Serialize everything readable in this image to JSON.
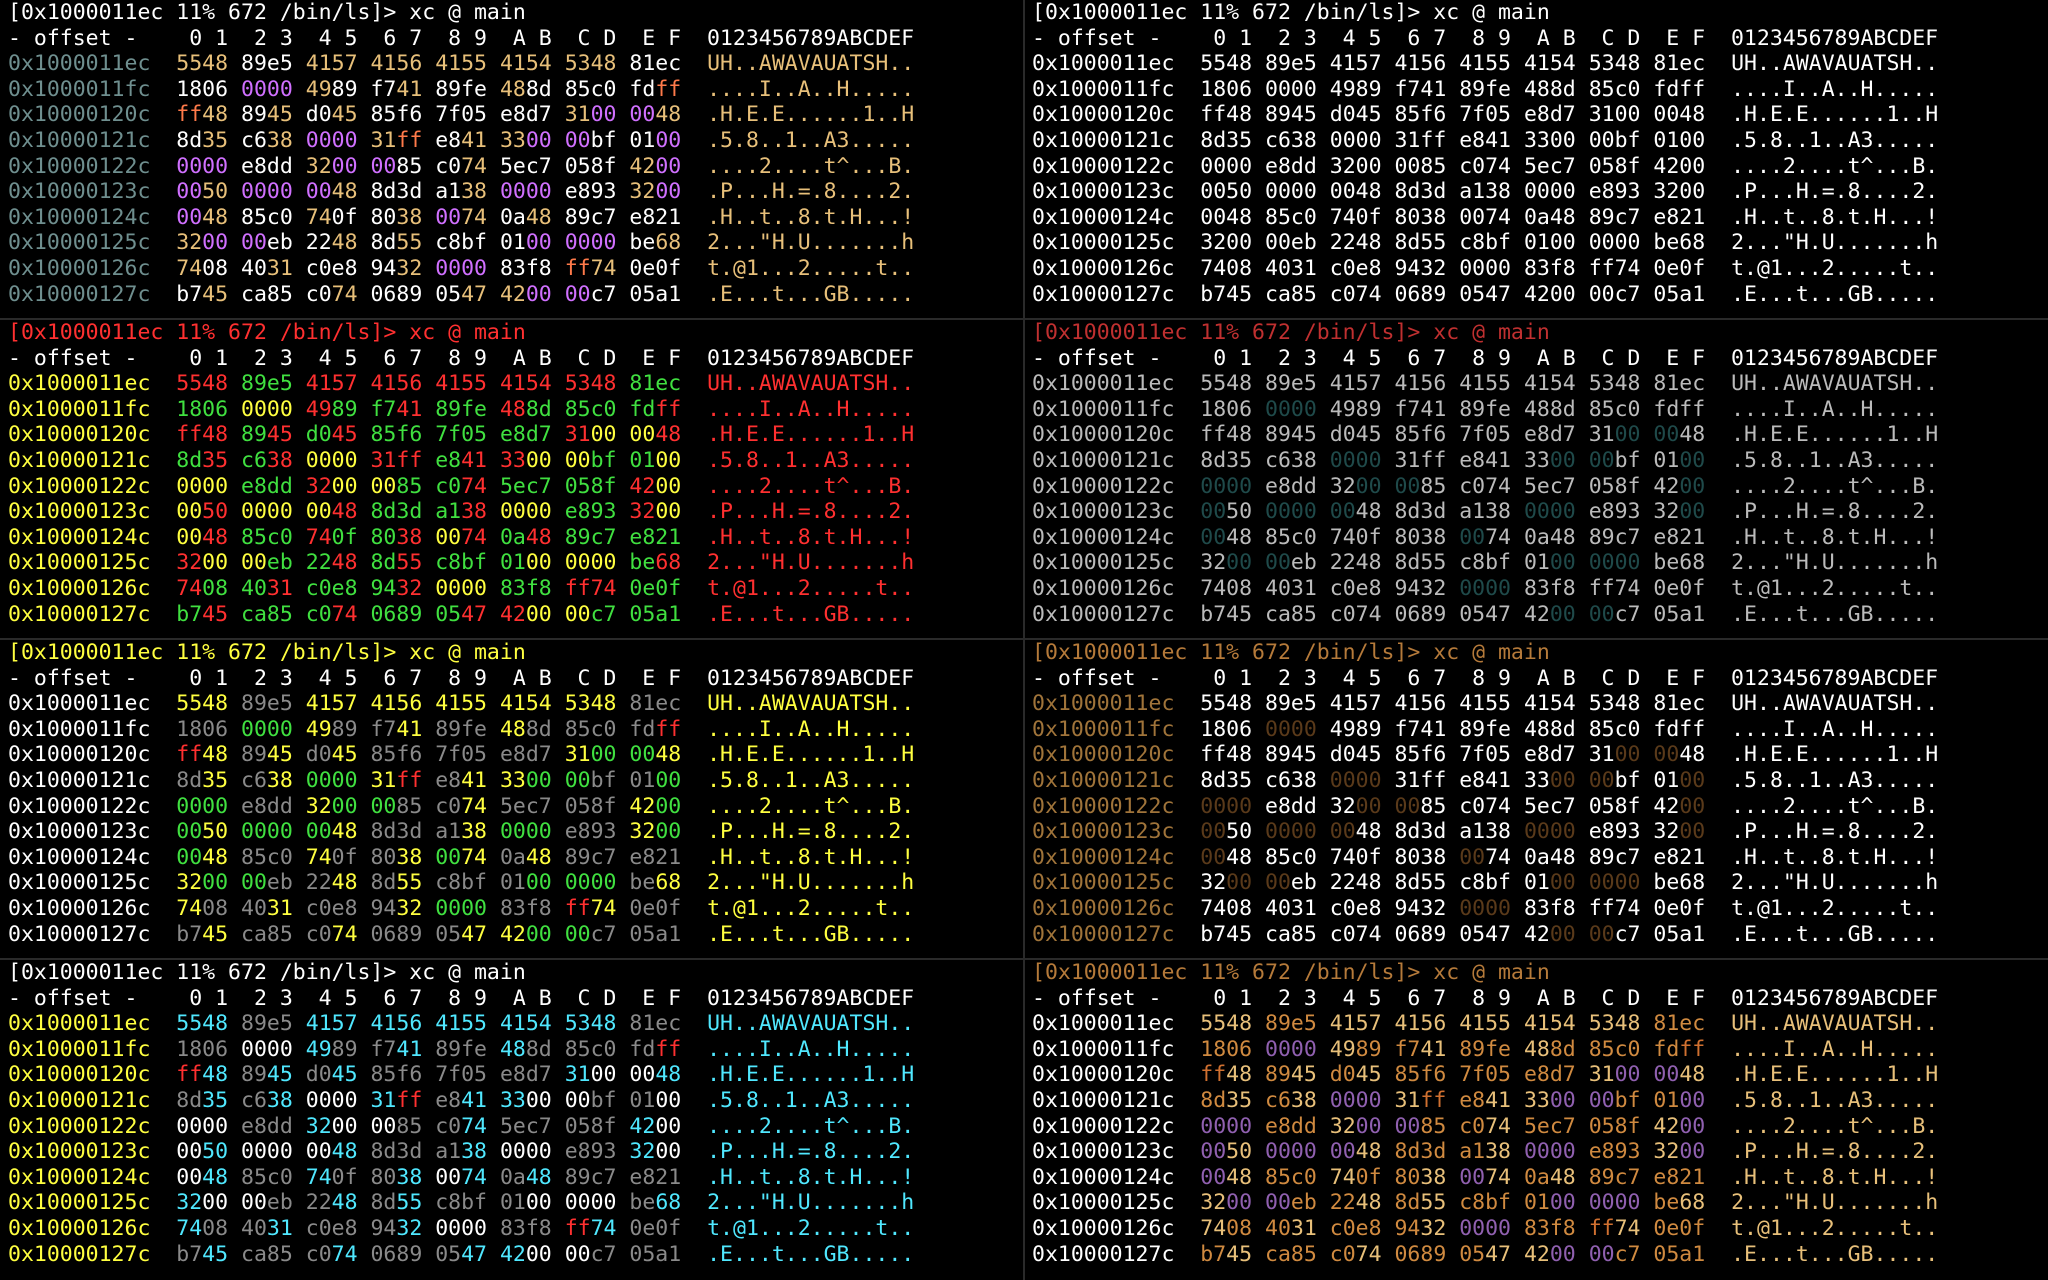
{
  "prompt_text": "[0x1000011ec 11% 672 /bin/ls]> xc @ main",
  "column_header": "- offset -    0 1  2 3  4 5  6 7  8 9  A B  C D  E F  0123456789ABCDEF",
  "rows": [
    {
      "offset": "0x1000011ec",
      "words": [
        "5548",
        "89e5",
        "4157",
        "4156",
        "4155",
        "4154",
        "5348",
        "81ec"
      ],
      "ascii": "UH..AWAVAUATSH.."
    },
    {
      "offset": "0x1000011fc",
      "words": [
        "1806",
        "0000",
        "4989",
        "f741",
        "89fe",
        "488d",
        "85c0",
        "fdff"
      ],
      "ascii": "....I..A..H....."
    },
    {
      "offset": "0x10000120c",
      "words": [
        "ff48",
        "8945",
        "d045",
        "85f6",
        "7f05",
        "e8d7",
        "3100",
        "0048"
      ],
      "ascii": ".H.E.E......1..H"
    },
    {
      "offset": "0x10000121c",
      "words": [
        "8d35",
        "c638",
        "0000",
        "31ff",
        "e841",
        "3300",
        "00bf",
        "0100"
      ],
      "ascii": ".5.8..1..A3....."
    },
    {
      "offset": "0x10000122c",
      "words": [
        "0000",
        "e8dd",
        "3200",
        "0085",
        "c074",
        "5ec7",
        "058f",
        "4200"
      ],
      "ascii": "....2....t^...B."
    },
    {
      "offset": "0x10000123c",
      "words": [
        "0050",
        "0000",
        "0048",
        "8d3d",
        "a138",
        "0000",
        "e893",
        "3200"
      ],
      "ascii": ".P...H.=.8....2."
    },
    {
      "offset": "0x10000124c",
      "words": [
        "0048",
        "85c0",
        "740f",
        "8038",
        "0074",
        "0a48",
        "89c7",
        "e821"
      ],
      "ascii": ".H..t..8.t.H...!"
    },
    {
      "offset": "0x10000125c",
      "words": [
        "3200",
        "00eb",
        "2248",
        "8d55",
        "c8bf",
        "0100",
        "0000",
        "be68"
      ],
      "ascii": "2...\"H.U.......h"
    },
    {
      "offset": "0x10000126c",
      "words": [
        "7408",
        "4031",
        "c0e8",
        "9432",
        "0000",
        "83f8",
        "ff74",
        "0e0f"
      ],
      "ascii": "t.@1...2.....t.."
    },
    {
      "offset": "0x10000127c",
      "words": [
        "b745",
        "ca85",
        "c074",
        "0689",
        "0547",
        "4200",
        "00c7",
        "05a1"
      ],
      "ascii": ".E...t...GB....."
    }
  ],
  "panels": [
    {
      "name": "panel-theme-1",
      "col": 0,
      "row": 0,
      "prompt": "#ffffff",
      "header": "#ffffff",
      "offset": "#6f8f8f",
      "ascii": "#e8c07a",
      "sched": {
        "ff": "#ff7a4a",
        "00": "#d070ff",
        "default": "#ffffff",
        "hi": "#e8c07a"
      }
    },
    {
      "name": "panel-theme-2",
      "col": 1,
      "row": 0,
      "prompt": "#ffffff",
      "header": "#ffffff",
      "offset": "#ffffff",
      "ascii": "#ffffff",
      "sched": {
        "ff": "#ffffff",
        "00": "#ffffff",
        "default": "#ffffff",
        "hi": "#ffffff"
      }
    },
    {
      "name": "panel-theme-3",
      "col": 0,
      "row": 1,
      "prompt": "#ff3030",
      "header": "#ffffff",
      "offset": "#ffff40",
      "ascii": "#ff3030",
      "sched": {
        "ff": "#ff3030",
        "00": "#ffff40",
        "default": "#40e040",
        "hi": "#ff3030"
      }
    },
    {
      "name": "panel-theme-4",
      "col": 1,
      "row": 1,
      "prompt": "#c03030",
      "header": "#ffffff",
      "offset": "#bbbbbb",
      "ascii": "#bbbbbb",
      "sched": {
        "ff": "#bbbbbb",
        "00": "#1f4a4a",
        "default": "#bbbbbb",
        "hi": "#bbbbbb"
      }
    },
    {
      "name": "panel-theme-5",
      "col": 0,
      "row": 2,
      "prompt": "#ffff40",
      "header": "#ffffff",
      "offset": "#ffffff",
      "ascii": "#ffff40",
      "sched": {
        "ff": "#ff3030",
        "00": "#40e040",
        "default": "#8a8a8a",
        "hi": "#ffff40"
      }
    },
    {
      "name": "panel-theme-6",
      "col": 1,
      "row": 2,
      "prompt": "#b57a3a",
      "header": "#ffffff",
      "offset": "#a0743a",
      "ascii": "#ffffff",
      "sched": {
        "ff": "#ffffff",
        "00": "#5a3a1a",
        "default": "#ffffff",
        "hi": "#ffffff"
      }
    },
    {
      "name": "panel-theme-7",
      "col": 0,
      "row": 3,
      "prompt": "#ffffff",
      "header": "#ffffff",
      "offset": "#ffff40",
      "ascii": "#50e8ff",
      "sched": {
        "ff": "#ff3030",
        "00": "#ffffff",
        "default": "#8a8a8a",
        "hi": "#50e8ff"
      }
    },
    {
      "name": "panel-theme-8",
      "col": 1,
      "row": 3,
      "prompt": "#b57a3a",
      "header": "#ffffff",
      "offset": "#ffffff",
      "ascii": "#e8c07a",
      "sched": {
        "ff": "#d07030",
        "00": "#9060b0",
        "default": "#d08a40",
        "hi": "#e8c07a"
      }
    }
  ]
}
